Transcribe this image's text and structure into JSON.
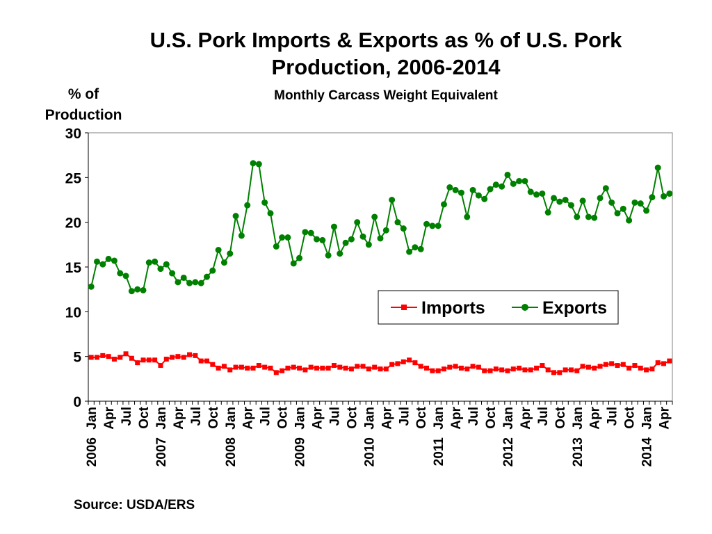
{
  "chart_data": {
    "type": "line",
    "title": "U.S. Pork Imports & Exports as % of U.S. Pork Production, 2006-2014",
    "subtitle": "Monthly Carcass Weight Equivalent",
    "ylabel": "% of Production",
    "source": "Source: USDA/ERS",
    "ylim": [
      0,
      30
    ],
    "yticks": [
      0,
      5,
      10,
      15,
      20,
      25,
      30
    ],
    "grid": false,
    "legend_position": "center-right",
    "x_start": "2006-01",
    "x_end": "2014-05",
    "month_ticks": [
      "Jan",
      "Apr",
      "Jul",
      "Oct"
    ],
    "year_labels": [
      "2006",
      "2007",
      "2008",
      "2009",
      "2010",
      "2011",
      "2012",
      "2013",
      "2014"
    ],
    "series": [
      {
        "name": "Imports",
        "color": "#ff0000",
        "marker": "square",
        "values": [
          4.9,
          4.9,
          5.1,
          5.0,
          4.7,
          4.9,
          5.3,
          4.8,
          4.3,
          4.6,
          4.6,
          4.6,
          4.0,
          4.7,
          4.9,
          5.0,
          4.9,
          5.2,
          5.1,
          4.5,
          4.5,
          4.1,
          3.7,
          3.9,
          3.5,
          3.8,
          3.8,
          3.7,
          3.7,
          4.0,
          3.8,
          3.7,
          3.2,
          3.4,
          3.7,
          3.8,
          3.7,
          3.5,
          3.8,
          3.7,
          3.7,
          3.7,
          4.0,
          3.8,
          3.7,
          3.6,
          3.9,
          3.9,
          3.6,
          3.8,
          3.6,
          3.6,
          4.1,
          4.2,
          4.4,
          4.6,
          4.3,
          3.9,
          3.7,
          3.4,
          3.4,
          3.6,
          3.8,
          3.9,
          3.7,
          3.6,
          3.9,
          3.8,
          3.4,
          3.4,
          3.6,
          3.5,
          3.4,
          3.6,
          3.7,
          3.5,
          3.5,
          3.7,
          4.0,
          3.5,
          3.2,
          3.2,
          3.5,
          3.5,
          3.4,
          3.9,
          3.8,
          3.7,
          3.9,
          4.1,
          4.2,
          4.0,
          4.1,
          3.7,
          4.0,
          3.7,
          3.5,
          3.6,
          4.3,
          4.2,
          4.5
        ]
      },
      {
        "name": "Exports",
        "color": "#008000",
        "marker": "circle",
        "values": [
          12.8,
          15.6,
          15.3,
          15.9,
          15.7,
          14.3,
          14.0,
          12.3,
          12.5,
          12.4,
          15.5,
          15.6,
          14.8,
          15.3,
          14.3,
          13.3,
          13.8,
          13.2,
          13.3,
          13.2,
          13.9,
          14.6,
          16.9,
          15.5,
          16.5,
          20.7,
          18.5,
          21.9,
          26.6,
          26.5,
          22.2,
          21.0,
          17.3,
          18.3,
          18.3,
          15.4,
          16.0,
          18.9,
          18.8,
          18.1,
          18.0,
          16.3,
          19.5,
          16.5,
          17.7,
          18.1,
          20.0,
          18.4,
          17.5,
          20.6,
          18.2,
          19.1,
          22.5,
          20.0,
          19.3,
          16.7,
          17.2,
          17.0,
          19.8,
          19.6,
          19.6,
          22.0,
          23.9,
          23.6,
          23.3,
          20.6,
          23.6,
          23.0,
          22.6,
          23.7,
          24.2,
          24.0,
          25.3,
          24.3,
          24.6,
          24.6,
          23.4,
          23.1,
          23.2,
          21.1,
          22.7,
          22.3,
          22.5,
          21.9,
          20.6,
          22.4,
          20.6,
          20.5,
          22.7,
          23.8,
          22.2,
          21.0,
          21.5,
          20.2,
          22.2,
          22.1,
          21.3,
          22.8,
          26.1,
          22.9,
          23.2
        ]
      }
    ]
  }
}
